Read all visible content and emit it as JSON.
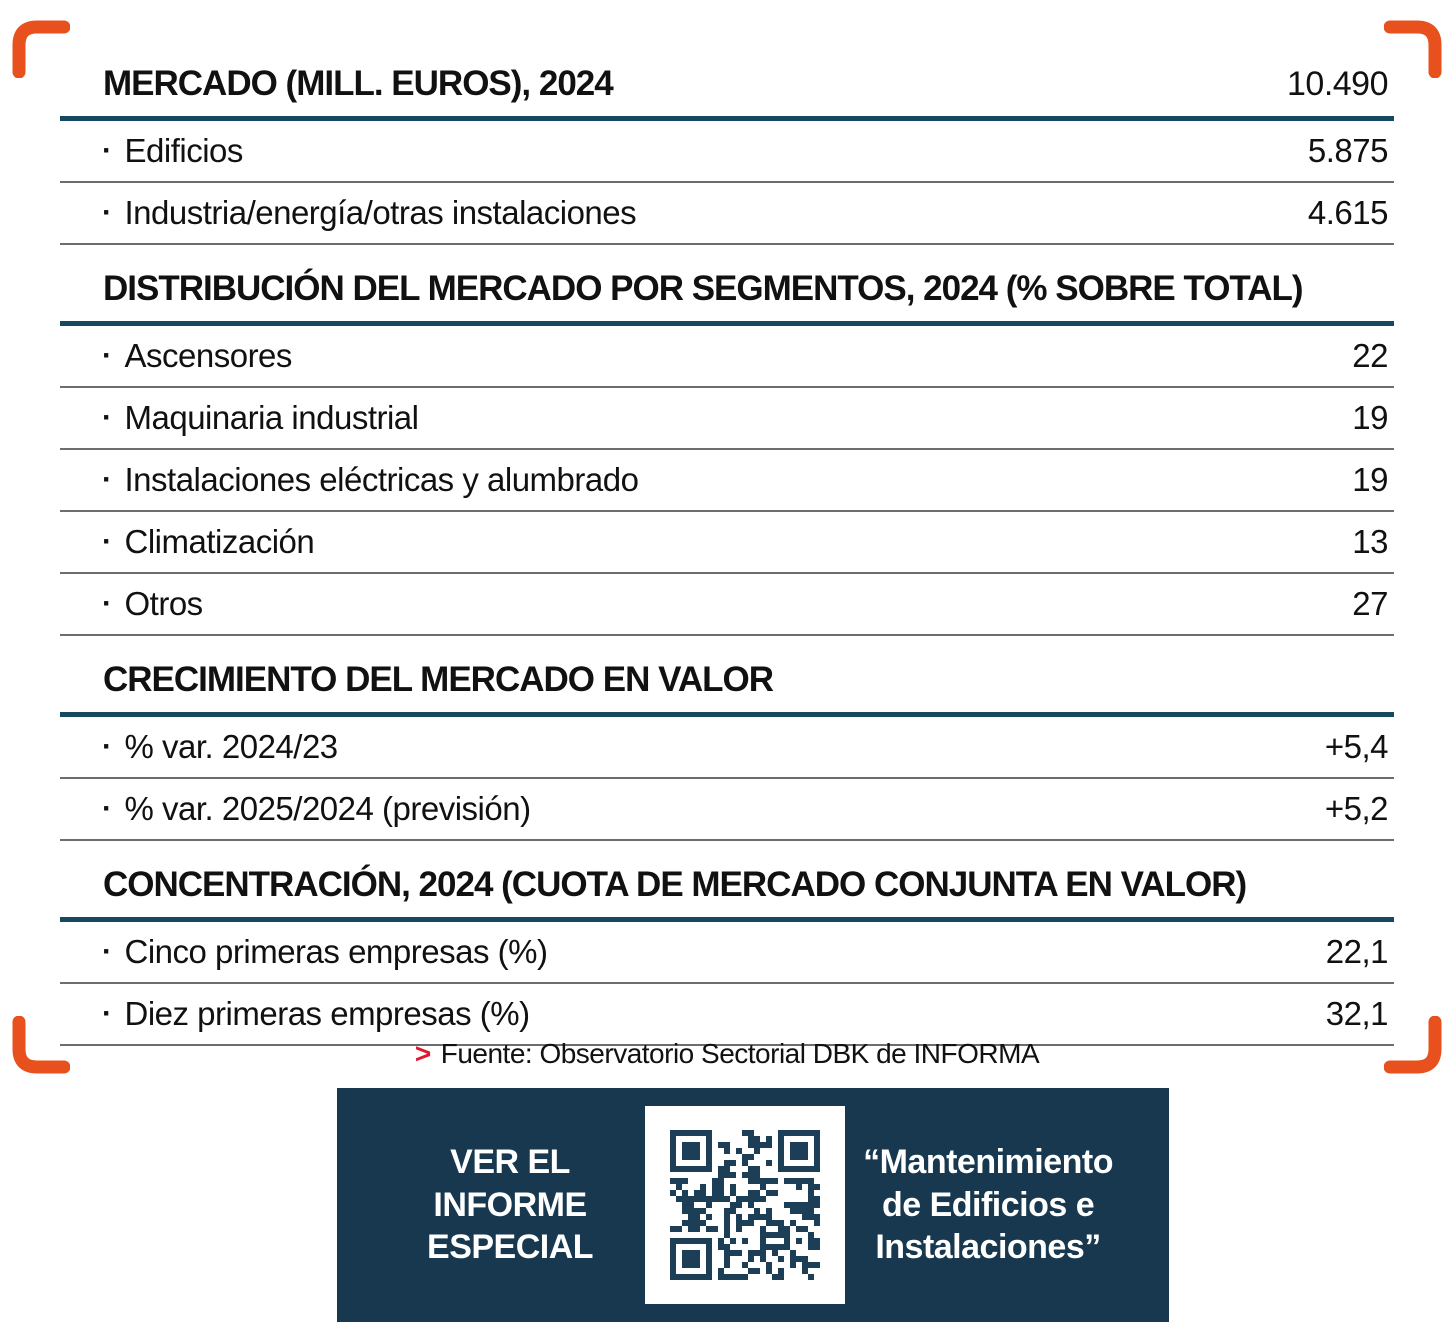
{
  "colors": {
    "orange": "#E8501E",
    "line-navy": "#16485F",
    "line-gray": "#6D6D6D",
    "banner-navy": "#17384E",
    "qr-navy": "#1C3E57",
    "source-red": "#E0192F",
    "text": "#111111"
  },
  "bullet": "·",
  "sections": [
    {
      "title": "MERCADO (MILL. EUROS), 2024",
      "value": "10.490",
      "rows": [
        {
          "label": "Edificios",
          "value": "5.875"
        },
        {
          "label": "Industria/energía/otras instalaciones",
          "value": "4.615"
        }
      ]
    },
    {
      "title": "DISTRIBUCIÓN DEL MERCADO POR SEGMENTOS, 2024 (% SOBRE TOTAL)",
      "value": "",
      "rows": [
        {
          "label": "Ascensores",
          "value": "22"
        },
        {
          "label": "Maquinaria industrial",
          "value": "19"
        },
        {
          "label": "Instalaciones eléctricas y alumbrado",
          "value": "19"
        },
        {
          "label": "Climatización",
          "value": "13"
        },
        {
          "label": "Otros",
          "value": "27"
        }
      ]
    },
    {
      "title": "CRECIMIENTO DEL MERCADO EN VALOR",
      "value": "",
      "rows": [
        {
          "label": "% var. 2024/23",
          "value": "+5,4"
        },
        {
          "label": "% var. 2025/2024 (previsión)",
          "value": "+5,2"
        }
      ]
    },
    {
      "title": "CONCENTRACIÓN, 2024 (CUOTA DE MERCADO CONJUNTA EN VALOR)",
      "value": "",
      "rows": [
        {
          "label": "Cinco primeras empresas (%)",
          "value": "22,1"
        },
        {
          "label": "Diez primeras empresas (%)",
          "value": "32,1"
        }
      ]
    }
  ],
  "source": {
    "marker": ">",
    "text": "Fuente: Observatorio Sectorial DBK de INFORMA"
  },
  "banner": {
    "cta_lines": [
      "VER EL",
      "INFORME",
      "ESPECIAL"
    ],
    "quote_lines": [
      "“Mantenimiento",
      "de Edificios e",
      "Instalaciones”"
    ]
  },
  "chart_data": [
    {
      "type": "table",
      "title": "MERCADO (MILL. EUROS), 2024",
      "total": 10490,
      "categories": [
        "Edificios",
        "Industria/energía/otras instalaciones"
      ],
      "values": [
        5875,
        4615
      ]
    },
    {
      "type": "table",
      "title": "DISTRIBUCIÓN DEL MERCADO POR SEGMENTOS, 2024 (% SOBRE TOTAL)",
      "categories": [
        "Ascensores",
        "Maquinaria industrial",
        "Instalaciones eléctricas y alumbrado",
        "Climatización",
        "Otros"
      ],
      "values": [
        22,
        19,
        19,
        13,
        27
      ]
    },
    {
      "type": "table",
      "title": "CRECIMIENTO DEL MERCADO EN VALOR",
      "categories": [
        "% var. 2024/23",
        "% var. 2025/2024 (previsión)"
      ],
      "values": [
        5.4,
        5.2
      ]
    },
    {
      "type": "table",
      "title": "CONCENTRACIÓN, 2024 (CUOTA DE MERCADO CONJUNTA EN VALOR)",
      "categories": [
        "Cinco primeras empresas (%)",
        "Diez primeras empresas (%)"
      ],
      "values": [
        22.1,
        32.1
      ]
    }
  ]
}
